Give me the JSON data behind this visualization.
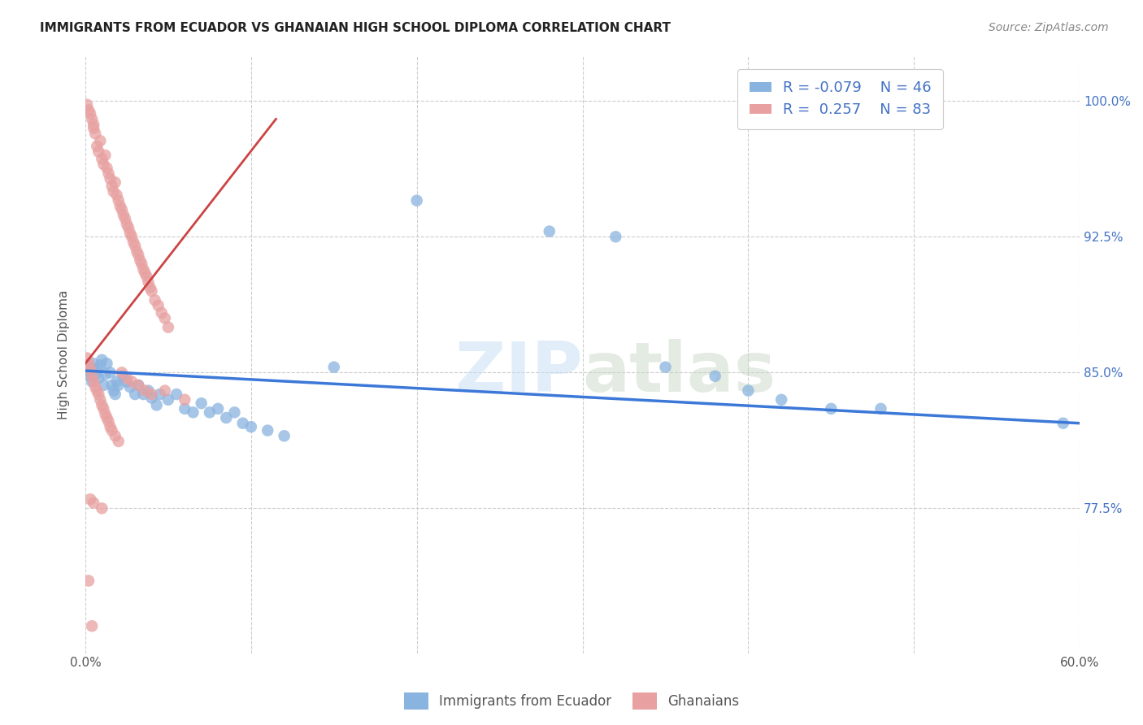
{
  "title": "IMMIGRANTS FROM ECUADOR VS GHANAIAN HIGH SCHOOL DIPLOMA CORRELATION CHART",
  "source": "Source: ZipAtlas.com",
  "ylabel": "High School Diploma",
  "legend_labels": [
    "Immigrants from Ecuador",
    "Ghanaians"
  ],
  "xlim": [
    0.0,
    0.6
  ],
  "ylim": [
    0.695,
    1.025
  ],
  "ytick_values": [
    0.775,
    0.85,
    0.925,
    1.0
  ],
  "ytick_labels": [
    "77.5%",
    "85.0%",
    "92.5%",
    "100.0%"
  ],
  "xtick_positions": [
    0.0,
    0.1,
    0.2,
    0.3,
    0.4,
    0.5,
    0.6
  ],
  "xtick_labels": [
    "0.0%",
    "",
    "",
    "",
    "",
    "",
    "60.0%"
  ],
  "color_blue": "#8ab4e0",
  "color_pink": "#e8a0a0",
  "color_blue_line": "#3c78d8",
  "color_pink_line": "#cc4444",
  "watermark": "ZIPatlas",
  "blue_scatter": [
    [
      0.001,
      0.851
    ],
    [
      0.002,
      0.853
    ],
    [
      0.003,
      0.848
    ],
    [
      0.004,
      0.845
    ],
    [
      0.005,
      0.855
    ],
    [
      0.006,
      0.849
    ],
    [
      0.007,
      0.852
    ],
    [
      0.008,
      0.847
    ],
    [
      0.009,
      0.854
    ],
    [
      0.01,
      0.857
    ],
    [
      0.011,
      0.843
    ],
    [
      0.012,
      0.849
    ],
    [
      0.013,
      0.855
    ],
    [
      0.015,
      0.85
    ],
    [
      0.016,
      0.843
    ],
    [
      0.017,
      0.84
    ],
    [
      0.018,
      0.838
    ],
    [
      0.019,
      0.845
    ],
    [
      0.02,
      0.843
    ],
    [
      0.023,
      0.848
    ],
    [
      0.025,
      0.845
    ],
    [
      0.027,
      0.842
    ],
    [
      0.03,
      0.838
    ],
    [
      0.032,
      0.843
    ],
    [
      0.035,
      0.838
    ],
    [
      0.038,
      0.84
    ],
    [
      0.04,
      0.836
    ],
    [
      0.043,
      0.832
    ],
    [
      0.045,
      0.838
    ],
    [
      0.05,
      0.835
    ],
    [
      0.055,
      0.838
    ],
    [
      0.06,
      0.83
    ],
    [
      0.065,
      0.828
    ],
    [
      0.07,
      0.833
    ],
    [
      0.075,
      0.828
    ],
    [
      0.08,
      0.83
    ],
    [
      0.085,
      0.825
    ],
    [
      0.09,
      0.828
    ],
    [
      0.095,
      0.822
    ],
    [
      0.1,
      0.82
    ],
    [
      0.11,
      0.818
    ],
    [
      0.12,
      0.815
    ],
    [
      0.15,
      0.853
    ],
    [
      0.2,
      0.945
    ],
    [
      0.28,
      0.928
    ],
    [
      0.32,
      0.925
    ],
    [
      0.35,
      0.853
    ],
    [
      0.38,
      0.848
    ],
    [
      0.4,
      0.84
    ],
    [
      0.42,
      0.835
    ],
    [
      0.45,
      0.83
    ],
    [
      0.48,
      0.83
    ],
    [
      0.59,
      0.822
    ]
  ],
  "pink_scatter": [
    [
      0.001,
      0.998
    ],
    [
      0.002,
      0.995
    ],
    [
      0.003,
      0.993
    ],
    [
      0.004,
      0.99
    ],
    [
      0.005,
      0.987
    ],
    [
      0.005,
      0.985
    ],
    [
      0.006,
      0.982
    ],
    [
      0.007,
      0.975
    ],
    [
      0.008,
      0.972
    ],
    [
      0.009,
      0.978
    ],
    [
      0.01,
      0.968
    ],
    [
      0.011,
      0.965
    ],
    [
      0.012,
      0.97
    ],
    [
      0.013,
      0.963
    ],
    [
      0.014,
      0.96
    ],
    [
      0.015,
      0.957
    ],
    [
      0.016,
      0.953
    ],
    [
      0.017,
      0.95
    ],
    [
      0.018,
      0.955
    ],
    [
      0.019,
      0.948
    ],
    [
      0.02,
      0.945
    ],
    [
      0.021,
      0.942
    ],
    [
      0.022,
      0.94
    ],
    [
      0.023,
      0.937
    ],
    [
      0.024,
      0.935
    ],
    [
      0.025,
      0.932
    ],
    [
      0.026,
      0.93
    ],
    [
      0.027,
      0.927
    ],
    [
      0.028,
      0.925
    ],
    [
      0.029,
      0.922
    ],
    [
      0.03,
      0.92
    ],
    [
      0.031,
      0.917
    ],
    [
      0.032,
      0.915
    ],
    [
      0.033,
      0.912
    ],
    [
      0.034,
      0.91
    ],
    [
      0.035,
      0.907
    ],
    [
      0.036,
      0.905
    ],
    [
      0.037,
      0.903
    ],
    [
      0.038,
      0.9
    ],
    [
      0.039,
      0.897
    ],
    [
      0.04,
      0.895
    ],
    [
      0.042,
      0.89
    ],
    [
      0.044,
      0.887
    ],
    [
      0.046,
      0.883
    ],
    [
      0.048,
      0.88
    ],
    [
      0.05,
      0.875
    ],
    [
      0.001,
      0.858
    ],
    [
      0.002,
      0.855
    ],
    [
      0.003,
      0.852
    ],
    [
      0.004,
      0.848
    ],
    [
      0.005,
      0.845
    ],
    [
      0.006,
      0.842
    ],
    [
      0.007,
      0.84
    ],
    [
      0.008,
      0.838
    ],
    [
      0.009,
      0.835
    ],
    [
      0.01,
      0.832
    ],
    [
      0.011,
      0.83
    ],
    [
      0.012,
      0.827
    ],
    [
      0.013,
      0.825
    ],
    [
      0.014,
      0.823
    ],
    [
      0.015,
      0.82
    ],
    [
      0.016,
      0.818
    ],
    [
      0.018,
      0.815
    ],
    [
      0.02,
      0.812
    ],
    [
      0.022,
      0.85
    ],
    [
      0.025,
      0.847
    ],
    [
      0.028,
      0.845
    ],
    [
      0.032,
      0.843
    ],
    [
      0.036,
      0.84
    ],
    [
      0.04,
      0.838
    ],
    [
      0.048,
      0.84
    ],
    [
      0.06,
      0.835
    ],
    [
      0.003,
      0.78
    ],
    [
      0.005,
      0.778
    ],
    [
      0.01,
      0.775
    ],
    [
      0.002,
      0.735
    ],
    [
      0.004,
      0.71
    ]
  ],
  "blue_trendline_x": [
    0.0,
    0.6
  ],
  "blue_trendline_y": [
    0.851,
    0.822
  ],
  "pink_trendline_x": [
    0.0,
    0.115
  ],
  "pink_trendline_y": [
    0.855,
    0.99
  ]
}
